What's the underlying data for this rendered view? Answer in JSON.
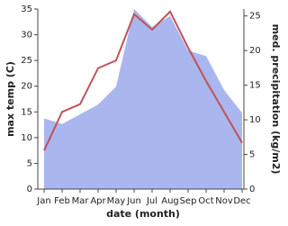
{
  "chart_data": {
    "type": "line-area",
    "x_label": "date (month)",
    "y_label": "max temp (C)",
    "y2_label": "med. precipitation (kg/m2)",
    "categories": [
      "Jan",
      "Feb",
      "Mar",
      "Apr",
      "May",
      "Jun",
      "Jul",
      "Aug",
      "Sep",
      "Oct",
      "Nov",
      "Dec"
    ],
    "series": [
      {
        "name": "max temp",
        "color": "#c0525a",
        "values": [
          7.5,
          15,
          16.5,
          23.5,
          25,
          34,
          31,
          34.5,
          27.5,
          21,
          15,
          9
        ]
      },
      {
        "name": "med. precipitation",
        "color": "#aab6ee",
        "axis": "y2",
        "values": [
          10.2,
          9.4,
          10.8,
          12.2,
          14.8,
          26,
          23.4,
          25,
          20,
          19.2,
          14.3,
          11
        ]
      }
    ],
    "ylim": [
      0,
      35
    ],
    "yticks": [
      0,
      5,
      10,
      15,
      20,
      25,
      30,
      35
    ],
    "y2lim": [
      0,
      26
    ],
    "y2ticks": [
      0,
      5,
      10,
      15,
      20,
      25
    ]
  }
}
